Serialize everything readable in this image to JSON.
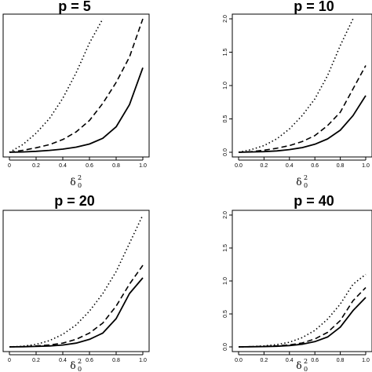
{
  "chart_data": [
    {
      "type": "line",
      "title": "p = 5",
      "xlabel": "δ",
      "xlabel_sup": "2",
      "xlabel_sub": "0",
      "x": [
        0.0,
        0.1,
        0.2,
        0.3,
        0.4,
        0.5,
        0.6,
        0.7,
        0.8,
        0.9,
        1.0
      ],
      "xlim": [
        0,
        1.0
      ],
      "ylim": [
        0,
        2.1
      ],
      "xticks": [
        "0",
        "0.2",
        "0.4",
        "0.6",
        "0.8",
        "1.0"
      ],
      "yticks": [],
      "series": [
        {
          "style": "solid",
          "values": [
            0.0,
            0.005,
            0.015,
            0.03,
            0.05,
            0.08,
            0.13,
            0.22,
            0.4,
            0.75,
            1.33
          ]
        },
        {
          "style": "dashed",
          "values": [
            0.0,
            0.03,
            0.07,
            0.12,
            0.2,
            0.32,
            0.5,
            0.77,
            1.1,
            1.5,
            2.1
          ]
        },
        {
          "style": "dotted",
          "values": [
            0.0,
            0.12,
            0.3,
            0.53,
            0.85,
            1.25,
            1.72,
            2.1,
            null,
            null,
            null
          ]
        }
      ]
    },
    {
      "type": "line",
      "title": "p = 10",
      "xlabel": "δ",
      "xlabel_sup": "2",
      "xlabel_sub": "0",
      "x": [
        0.0,
        0.1,
        0.2,
        0.3,
        0.4,
        0.5,
        0.6,
        0.7,
        0.8,
        0.9,
        1.0
      ],
      "xlim": [
        0,
        1.0
      ],
      "ylim": [
        0,
        2.0
      ],
      "xticks": [
        "0.0",
        "0.2",
        "0.4",
        "0.6",
        "0.8",
        "1.0"
      ],
      "yticks": [
        "0.0",
        "0.5",
        "1.0",
        "1.5",
        "2.0"
      ],
      "series": [
        {
          "style": "solid",
          "values": [
            0.0,
            0.005,
            0.01,
            0.02,
            0.04,
            0.07,
            0.12,
            0.2,
            0.33,
            0.55,
            0.85
          ]
        },
        {
          "style": "dashed",
          "values": [
            0.0,
            0.01,
            0.03,
            0.06,
            0.1,
            0.16,
            0.25,
            0.4,
            0.6,
            0.95,
            1.3
          ]
        },
        {
          "style": "dotted",
          "values": [
            0.0,
            0.04,
            0.1,
            0.2,
            0.35,
            0.55,
            0.8,
            1.15,
            1.6,
            2.0,
            null
          ]
        }
      ]
    },
    {
      "type": "line",
      "title": "p = 20",
      "xlabel": "δ",
      "xlabel_sup": "2",
      "xlabel_sub": "0",
      "x": [
        0.0,
        0.1,
        0.2,
        0.3,
        0.4,
        0.5,
        0.6,
        0.7,
        0.8,
        0.9,
        1.0
      ],
      "xlim": [
        0,
        1.0
      ],
      "ylim": [
        0,
        2.1
      ],
      "xticks": [
        "0",
        "0.2",
        "0.4",
        "0.6",
        "0.8",
        "1.0"
      ],
      "yticks": [],
      "series": [
        {
          "style": "solid",
          "values": [
            0.0,
            0.003,
            0.008,
            0.015,
            0.03,
            0.06,
            0.12,
            0.22,
            0.45,
            0.85,
            1.1
          ]
        },
        {
          "style": "dashed",
          "values": [
            0.0,
            0.005,
            0.015,
            0.03,
            0.06,
            0.12,
            0.22,
            0.38,
            0.65,
            1.0,
            1.3
          ]
        },
        {
          "style": "dotted",
          "values": [
            0.0,
            0.01,
            0.04,
            0.1,
            0.2,
            0.35,
            0.57,
            0.85,
            1.2,
            1.65,
            2.1
          ]
        }
      ]
    },
    {
      "type": "line",
      "title": "p = 40",
      "xlabel": "δ",
      "xlabel_sup": "2",
      "xlabel_sub": "0",
      "x": [
        0.0,
        0.1,
        0.2,
        0.3,
        0.4,
        0.5,
        0.6,
        0.7,
        0.8,
        0.9,
        1.0
      ],
      "xlim": [
        0,
        1.0
      ],
      "ylim": [
        0,
        2.0
      ],
      "xticks": [
        "0.0",
        "0.2",
        "0.4",
        "0.6",
        "0.8",
        "1.0"
      ],
      "yticks": [
        "0.0",
        "0.5",
        "1.0",
        "1.5",
        "2.0"
      ],
      "series": [
        {
          "style": "solid",
          "values": [
            0.0,
            0.002,
            0.005,
            0.01,
            0.02,
            0.04,
            0.08,
            0.15,
            0.3,
            0.55,
            0.75
          ]
        },
        {
          "style": "dashed",
          "values": [
            0.0,
            0.003,
            0.008,
            0.015,
            0.03,
            0.06,
            0.12,
            0.22,
            0.4,
            0.7,
            0.9
          ]
        },
        {
          "style": "dotted",
          "values": [
            0.0,
            0.005,
            0.015,
            0.035,
            0.07,
            0.14,
            0.25,
            0.42,
            0.65,
            0.95,
            1.1
          ]
        }
      ]
    }
  ]
}
